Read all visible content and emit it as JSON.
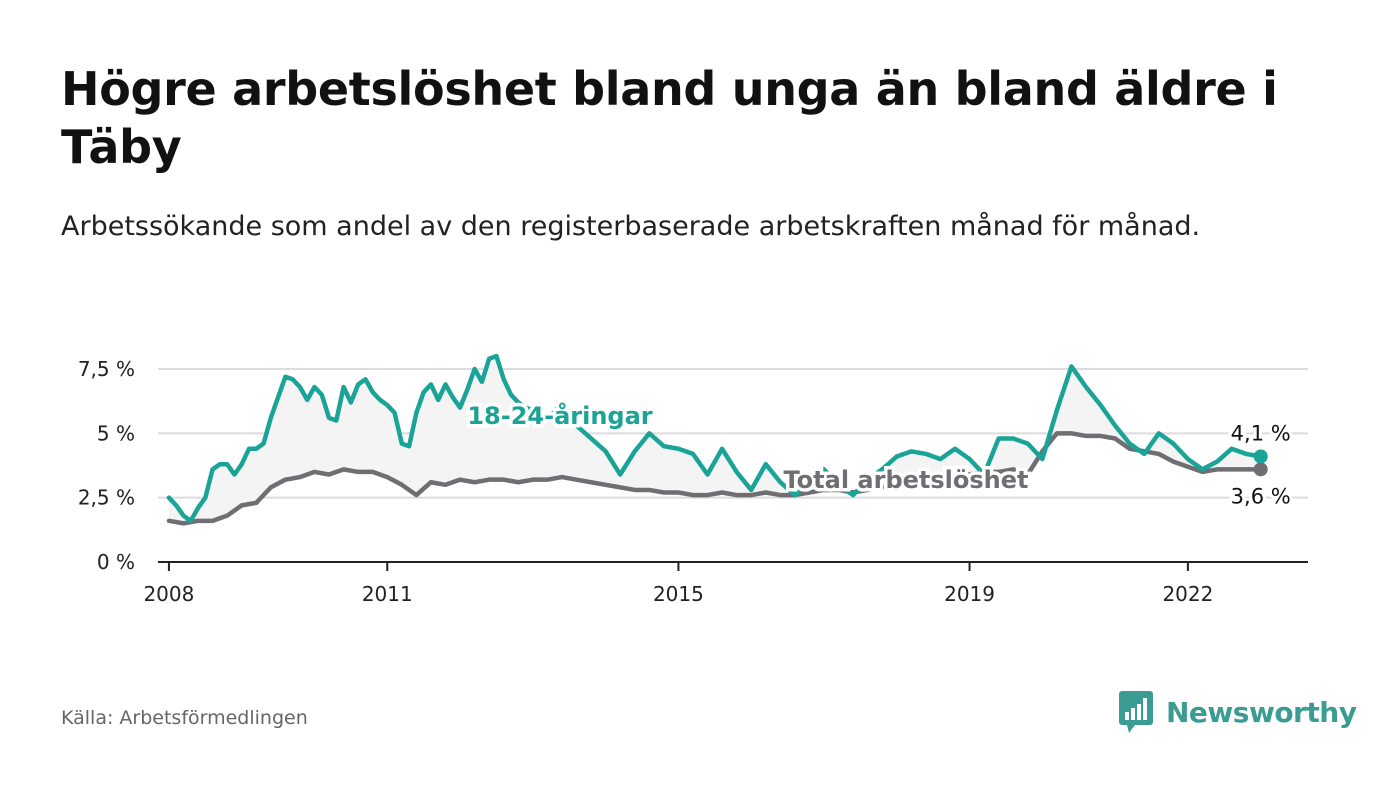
{
  "title": "Högre arbetslöshet bland unga än bland äldre i Täby",
  "subtitle": "Arbetssökande som andel av den registerbaserade arbetskraften månad för månad.",
  "source": "Källa: Arbetsförmedlingen",
  "brand": "Newsworthy",
  "colors": {
    "youth": "#1aa497",
    "total": "#6e6e73",
    "fill": "#f4f4f5",
    "grid": "#dcdcdc",
    "brand": "#3a9c92"
  },
  "chart_data": {
    "type": "line",
    "title": "Högre arbetslöshet bland unga än bland äldre i Täby",
    "xlabel": "",
    "ylabel": "",
    "xlim": [
      2007.85,
      2023.65
    ],
    "ylim": [
      0,
      7.5
    ],
    "yticks": [
      {
        "value": 0,
        "label": "0 %"
      },
      {
        "value": 2.5,
        "label": "2,5 %"
      },
      {
        "value": 5,
        "label": "5 %"
      },
      {
        "value": 7.5,
        "label": "7,5 %"
      }
    ],
    "xticks": [
      {
        "value": 2008.0,
        "label": "2008"
      },
      {
        "value": 2011.0,
        "label": "2011"
      },
      {
        "value": 2015.0,
        "label": "2015"
      },
      {
        "value": 2019.0,
        "label": "2019"
      },
      {
        "value": 2022.0,
        "label": "2022"
      }
    ],
    "series": [
      {
        "name": "18-24-åringar",
        "label": "18-24-åringar",
        "end_label": "4,1 %",
        "x": [
          2008.0,
          2008.1,
          2008.2,
          2008.3,
          2008.4,
          2008.5,
          2008.6,
          2008.7,
          2008.8,
          2008.9,
          2009.0,
          2009.1,
          2009.2,
          2009.3,
          2009.4,
          2009.5,
          2009.6,
          2009.7,
          2009.8,
          2009.9,
          2010.0,
          2010.1,
          2010.2,
          2010.3,
          2010.4,
          2010.5,
          2010.6,
          2010.7,
          2010.8,
          2010.9,
          2011.0,
          2011.1,
          2011.2,
          2011.3,
          2011.4,
          2011.5,
          2011.6,
          2011.7,
          2011.8,
          2011.9,
          2012.0,
          2012.1,
          2012.2,
          2012.3,
          2012.4,
          2012.5,
          2012.6,
          2012.7,
          2012.8,
          2012.9,
          2013.0,
          2013.2,
          2013.4,
          2013.6,
          2013.8,
          2014.0,
          2014.2,
          2014.4,
          2014.6,
          2014.8,
          2015.0,
          2015.2,
          2015.4,
          2015.6,
          2015.8,
          2016.0,
          2016.2,
          2016.4,
          2016.6,
          2016.8,
          2017.0,
          2017.2,
          2017.4,
          2017.6,
          2017.8,
          2018.0,
          2018.2,
          2018.4,
          2018.6,
          2018.8,
          2019.0,
          2019.2,
          2019.4,
          2019.6,
          2019.8,
          2020.0,
          2020.2,
          2020.4,
          2020.6,
          2020.8,
          2021.0,
          2021.2,
          2021.4,
          2021.6,
          2021.8,
          2022.0,
          2022.2,
          2022.4,
          2022.6,
          2022.8,
          2023.0
        ],
        "values": [
          2.5,
          2.2,
          1.8,
          1.6,
          2.1,
          2.5,
          3.6,
          3.8,
          3.8,
          3.4,
          3.8,
          4.4,
          4.4,
          4.6,
          5.6,
          6.4,
          7.2,
          7.1,
          6.8,
          6.3,
          6.8,
          6.5,
          5.6,
          5.5,
          6.8,
          6.2,
          6.9,
          7.1,
          6.6,
          6.3,
          6.1,
          5.8,
          4.6,
          4.5,
          5.8,
          6.6,
          6.9,
          6.3,
          6.9,
          6.4,
          6.0,
          6.7,
          7.5,
          7.0,
          7.9,
          8.0,
          7.1,
          6.5,
          6.2,
          6.0,
          5.9,
          5.5,
          6.2,
          5.3,
          4.8,
          4.3,
          3.4,
          4.3,
          5.0,
          4.5,
          4.4,
          4.2,
          3.4,
          4.4,
          3.5,
          2.8,
          3.8,
          3.1,
          2.6,
          3.1,
          3.6,
          3.0,
          2.6,
          3.2,
          3.6,
          4.1,
          4.3,
          4.2,
          4.0,
          4.4,
          4.0,
          3.4,
          4.8,
          4.8,
          4.6,
          4.0,
          5.9,
          7.6,
          6.8,
          6.1,
          5.3,
          4.6,
          4.2,
          5.0,
          4.6,
          4.0,
          3.6,
          3.9,
          4.4,
          4.2,
          4.1
        ]
      },
      {
        "name": "Total arbetslöshet",
        "label": "Total arbetslöshet",
        "end_label": "3,6 %",
        "x": [
          2008.0,
          2008.2,
          2008.4,
          2008.6,
          2008.8,
          2009.0,
          2009.2,
          2009.4,
          2009.6,
          2009.8,
          2010.0,
          2010.2,
          2010.4,
          2010.6,
          2010.8,
          2011.0,
          2011.2,
          2011.4,
          2011.6,
          2011.8,
          2012.0,
          2012.2,
          2012.4,
          2012.6,
          2012.8,
          2013.0,
          2013.2,
          2013.4,
          2013.6,
          2013.8,
          2014.0,
          2014.2,
          2014.4,
          2014.6,
          2014.8,
          2015.0,
          2015.2,
          2015.4,
          2015.6,
          2015.8,
          2016.0,
          2016.2,
          2016.4,
          2016.6,
          2016.8,
          2017.0,
          2017.2,
          2017.4,
          2017.6,
          2017.8,
          2018.0,
          2018.2,
          2018.4,
          2018.6,
          2018.8,
          2019.0,
          2019.2,
          2019.4,
          2019.6,
          2019.8,
          2020.0,
          2020.2,
          2020.4,
          2020.6,
          2020.8,
          2021.0,
          2021.2,
          2021.4,
          2021.6,
          2021.8,
          2022.0,
          2022.2,
          2022.4,
          2022.6,
          2022.8,
          2023.0
        ],
        "values": [
          1.6,
          1.5,
          1.6,
          1.6,
          1.8,
          2.2,
          2.3,
          2.9,
          3.2,
          3.3,
          3.5,
          3.4,
          3.6,
          3.5,
          3.5,
          3.3,
          3.0,
          2.6,
          3.1,
          3.0,
          3.2,
          3.1,
          3.2,
          3.2,
          3.1,
          3.2,
          3.2,
          3.3,
          3.2,
          3.1,
          3.0,
          2.9,
          2.8,
          2.8,
          2.7,
          2.7,
          2.6,
          2.6,
          2.7,
          2.6,
          2.6,
          2.7,
          2.6,
          2.6,
          2.7,
          2.8,
          2.8,
          2.7,
          2.8,
          2.9,
          3.0,
          3.1,
          3.2,
          3.3,
          3.4,
          3.4,
          3.5,
          3.5,
          3.6,
          3.4,
          4.3,
          5.0,
          5.0,
          4.9,
          4.9,
          4.8,
          4.4,
          4.3,
          4.2,
          3.9,
          3.7,
          3.5,
          3.6,
          3.6,
          3.6,
          3.6
        ]
      }
    ]
  }
}
